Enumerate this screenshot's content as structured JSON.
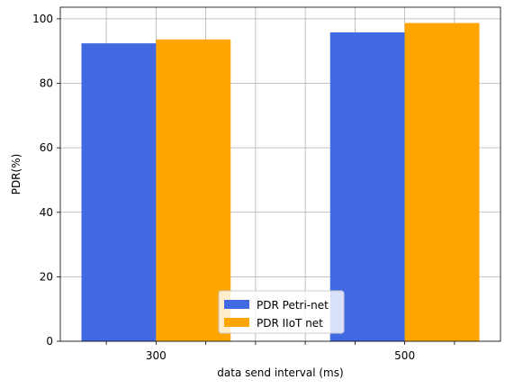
{
  "chart_data": {
    "type": "bar",
    "categories": [
      "300",
      "500"
    ],
    "series": [
      {
        "name": "PDR Petri-net",
        "values": [
          92.4,
          95.8
        ],
        "color": "#4169e1"
      },
      {
        "name": "PDR IIoT net",
        "values": [
          93.6,
          98.7
        ],
        "color": "#ffa500"
      }
    ],
    "xlabel": "data send interval (ms)",
    "ylabel": "PDR(%)",
    "ylim": [
      0,
      103.6
    ],
    "yticks": [
      0,
      20,
      40,
      60,
      80,
      100
    ],
    "grid": true,
    "legend_position": "bottom-center"
  }
}
